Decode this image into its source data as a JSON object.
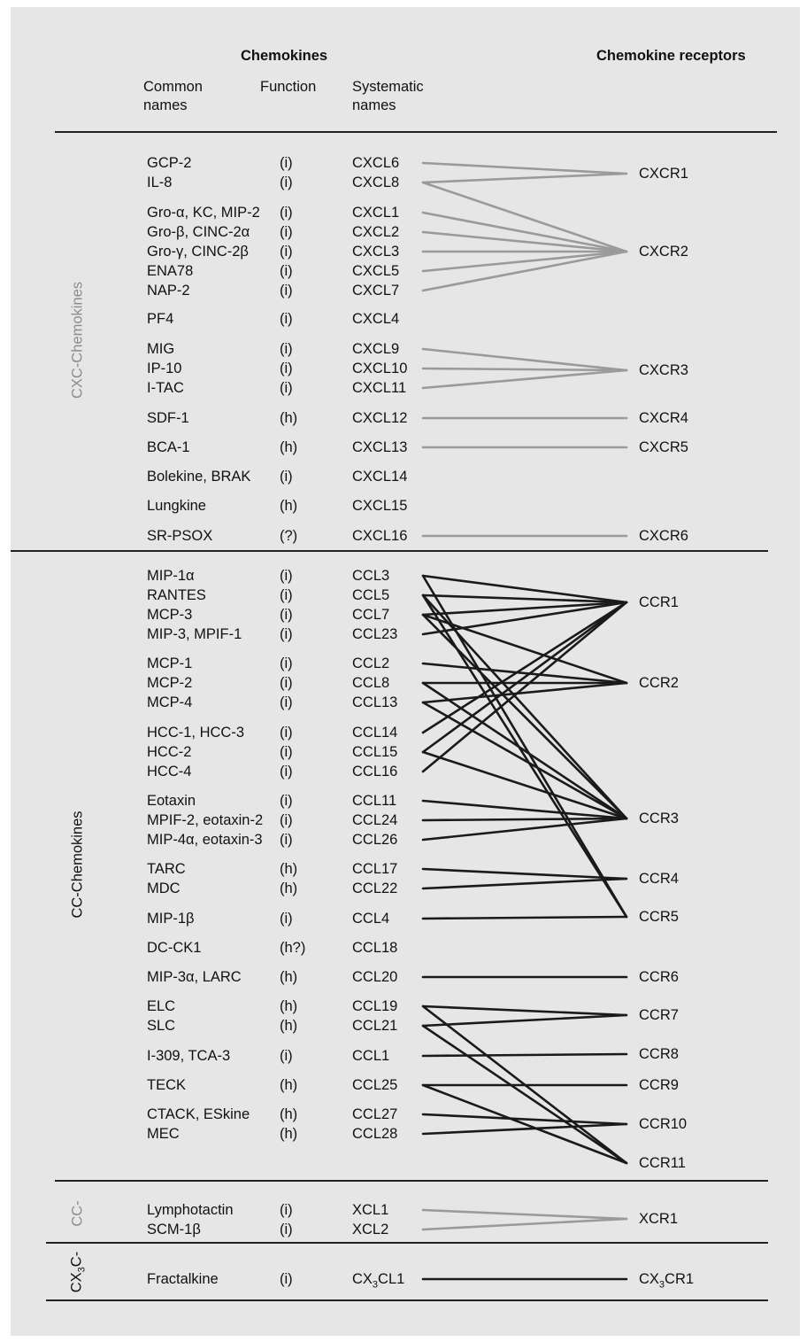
{
  "header": {
    "chemokines": "Chemokines",
    "receptors": "Chemokine receptors",
    "col_common": "Common names",
    "col_function": "Function",
    "col_systematic": "Systematic names"
  },
  "groups": {
    "cxc": "CXC-Chemokines",
    "cc": "CC-Chemokines",
    "c": "CC-",
    "cx3c": "CX3C-"
  },
  "colors": {
    "gray_link": "#9a9a9a",
    "black_link": "#1a1a1a",
    "gray_text": "#8c8c8c"
  },
  "rows": [
    {
      "common": "GCP-2",
      "func": "(i)",
      "sys": "CXCL6"
    },
    {
      "common": "IL-8",
      "func": "(i)",
      "sys": "CXCL8"
    },
    {
      "common": "Gro-α, KC, MIP-2",
      "func": "(i)",
      "sys": "CXCL1"
    },
    {
      "common": "Gro-β, CINC-2α",
      "func": "(i)",
      "sys": "CXCL2"
    },
    {
      "common": "Gro-γ, CINC-2β",
      "func": "(i)",
      "sys": "CXCL3"
    },
    {
      "common": "ENA78",
      "func": "(i)",
      "sys": "CXCL5"
    },
    {
      "common": "NAP-2",
      "func": "(i)",
      "sys": "CXCL7"
    },
    {
      "common": "PF4",
      "func": "(i)",
      "sys": "CXCL4"
    },
    {
      "common": "MIG",
      "func": "(i)",
      "sys": "CXCL9"
    },
    {
      "common": "IP-10",
      "func": "(i)",
      "sys": "CXCL10"
    },
    {
      "common": "I-TAC",
      "func": "(i)",
      "sys": "CXCL11"
    },
    {
      "common": "SDF-1",
      "func": "(h)",
      "sys": "CXCL12"
    },
    {
      "common": "BCA-1",
      "func": "(h)",
      "sys": "CXCL13"
    },
    {
      "common": "Bolekine, BRAK",
      "func": "(i)",
      "sys": "CXCL14"
    },
    {
      "common": "Lungkine",
      "func": "(h)",
      "sys": "CXCL15"
    },
    {
      "common": "SR-PSOX",
      "func": "(?)",
      "sys": "CXCL16"
    },
    {
      "common": "MIP-1α",
      "func": "(i)",
      "sys": "CCL3"
    },
    {
      "common": "RANTES",
      "func": "(i)",
      "sys": "CCL5"
    },
    {
      "common": "MCP-3",
      "func": "(i)",
      "sys": "CCL7"
    },
    {
      "common": "MIP-3, MPIF-1",
      "func": "(i)",
      "sys": "CCL23"
    },
    {
      "common": "MCP-1",
      "func": "(i)",
      "sys": "CCL2"
    },
    {
      "common": "MCP-2",
      "func": "(i)",
      "sys": "CCL8"
    },
    {
      "common": "MCP-4",
      "func": "(i)",
      "sys": "CCL13"
    },
    {
      "common": "HCC-1, HCC-3",
      "func": "(i)",
      "sys": "CCL14"
    },
    {
      "common": "HCC-2",
      "func": "(i)",
      "sys": "CCL15"
    },
    {
      "common": "HCC-4",
      "func": "(i)",
      "sys": "CCL16"
    },
    {
      "common": "Eotaxin",
      "func": "(i)",
      "sys": "CCL11"
    },
    {
      "common": "MPIF-2, eotaxin-2",
      "func": "(i)",
      "sys": "CCL24"
    },
    {
      "common": "MIP-4α, eotaxin-3",
      "func": "(i)",
      "sys": "CCL26"
    },
    {
      "common": "TARC",
      "func": "(h)",
      "sys": "CCL17"
    },
    {
      "common": "MDC",
      "func": "(h)",
      "sys": "CCL22"
    },
    {
      "common": "MIP-1β",
      "func": "(i)",
      "sys": "CCL4"
    },
    {
      "common": "DC-CK1",
      "func": "(h?)",
      "sys": "CCL18"
    },
    {
      "common": "MIP-3α, LARC",
      "func": "(h)",
      "sys": "CCL20"
    },
    {
      "common": "ELC",
      "func": "(h)",
      "sys": "CCL19"
    },
    {
      "common": "SLC",
      "func": "(h)",
      "sys": "CCL21"
    },
    {
      "common": "I-309, TCA-3",
      "func": "(i)",
      "sys": "CCL1"
    },
    {
      "common": "TECK",
      "func": "(h)",
      "sys": "CCL25"
    },
    {
      "common": "CTACK, ESkine",
      "func": "(h)",
      "sys": "CCL27"
    },
    {
      "common": "MEC",
      "func": "(h)",
      "sys": "CCL28"
    },
    {
      "common": "Lymphotactin",
      "func": "(i)",
      "sys": "XCL1"
    },
    {
      "common": "SCM-1β",
      "func": "(i)",
      "sys": "XCL2"
    },
    {
      "common": "Fractalkine",
      "func": "(i)",
      "sys": "CX3CL1"
    }
  ],
  "receptors": [
    {
      "id": "CXCR1",
      "label": "CXCR1"
    },
    {
      "id": "CXCR2",
      "label": "CXCR2"
    },
    {
      "id": "CXCR3",
      "label": "CXCR3"
    },
    {
      "id": "CXCR4",
      "label": "CXCR4"
    },
    {
      "id": "CXCR5",
      "label": "CXCR5"
    },
    {
      "id": "CXCR6",
      "label": "CXCR6"
    },
    {
      "id": "CCR1",
      "label": "CCR1"
    },
    {
      "id": "CCR2",
      "label": "CCR2"
    },
    {
      "id": "CCR3",
      "label": "CCR3"
    },
    {
      "id": "CCR4",
      "label": "CCR4"
    },
    {
      "id": "CCR5",
      "label": "CCR5"
    },
    {
      "id": "CCR6",
      "label": "CCR6"
    },
    {
      "id": "CCR7",
      "label": "CCR7"
    },
    {
      "id": "CCR8",
      "label": "CCR8"
    },
    {
      "id": "CCR9",
      "label": "CCR9"
    },
    {
      "id": "CCR10",
      "label": "CCR10"
    },
    {
      "id": "CCR11",
      "label": "CCR11"
    },
    {
      "id": "XCR1",
      "label": "XCR1"
    },
    {
      "id": "CX3CR1",
      "label": "CX3CR1"
    }
  ],
  "links": [
    [
      "CXCL6",
      "CXCR1",
      "gray"
    ],
    [
      "CXCL8",
      "CXCR1",
      "gray"
    ],
    [
      "CXCL8",
      "CXCR2",
      "gray"
    ],
    [
      "CXCL1",
      "CXCR2",
      "gray"
    ],
    [
      "CXCL2",
      "CXCR2",
      "gray"
    ],
    [
      "CXCL3",
      "CXCR2",
      "gray"
    ],
    [
      "CXCL5",
      "CXCR2",
      "gray"
    ],
    [
      "CXCL7",
      "CXCR2",
      "gray"
    ],
    [
      "CXCL9",
      "CXCR3",
      "gray"
    ],
    [
      "CXCL10",
      "CXCR3",
      "gray"
    ],
    [
      "CXCL11",
      "CXCR3",
      "gray"
    ],
    [
      "CXCL12",
      "CXCR4",
      "gray"
    ],
    [
      "CXCL13",
      "CXCR5",
      "gray"
    ],
    [
      "CXCL16",
      "CXCR6",
      "gray"
    ],
    [
      "CCL3",
      "CCR1",
      "black"
    ],
    [
      "CCL3",
      "CCR5",
      "black"
    ],
    [
      "CCL5",
      "CCR1",
      "black"
    ],
    [
      "CCL5",
      "CCR3",
      "black"
    ],
    [
      "CCL5",
      "CCR5",
      "black"
    ],
    [
      "CCL7",
      "CCR1",
      "black"
    ],
    [
      "CCL7",
      "CCR2",
      "black"
    ],
    [
      "CCL7",
      "CCR3",
      "black"
    ],
    [
      "CCL23",
      "CCR1",
      "black"
    ],
    [
      "CCL2",
      "CCR2",
      "black"
    ],
    [
      "CCL8",
      "CCR2",
      "black"
    ],
    [
      "CCL8",
      "CCR3",
      "black"
    ],
    [
      "CCL13",
      "CCR2",
      "black"
    ],
    [
      "CCL13",
      "CCR3",
      "black"
    ],
    [
      "CCL14",
      "CCR1",
      "black"
    ],
    [
      "CCL15",
      "CCR1",
      "black"
    ],
    [
      "CCL15",
      "CCR3",
      "black"
    ],
    [
      "CCL16",
      "CCR1",
      "black"
    ],
    [
      "CCL11",
      "CCR3",
      "black"
    ],
    [
      "CCL24",
      "CCR3",
      "black"
    ],
    [
      "CCL26",
      "CCR3",
      "black"
    ],
    [
      "CCL17",
      "CCR4",
      "black"
    ],
    [
      "CCL22",
      "CCR4",
      "black"
    ],
    [
      "CCL4",
      "CCR5",
      "black"
    ],
    [
      "CCL20",
      "CCR6",
      "black"
    ],
    [
      "CCL19",
      "CCR7",
      "black"
    ],
    [
      "CCL19",
      "CCR11",
      "black"
    ],
    [
      "CCL21",
      "CCR7",
      "black"
    ],
    [
      "CCL21",
      "CCR11",
      "black"
    ],
    [
      "CCL1",
      "CCR8",
      "black"
    ],
    [
      "CCL25",
      "CCR9",
      "black"
    ],
    [
      "CCL25",
      "CCR11",
      "black"
    ],
    [
      "CCL27",
      "CCR10",
      "black"
    ],
    [
      "CCL28",
      "CCR10",
      "black"
    ],
    [
      "XCL1",
      "XCR1",
      "gray"
    ],
    [
      "XCL2",
      "XCR1",
      "gray"
    ],
    [
      "CX3CL1",
      "CX3CR1",
      "black"
    ]
  ]
}
